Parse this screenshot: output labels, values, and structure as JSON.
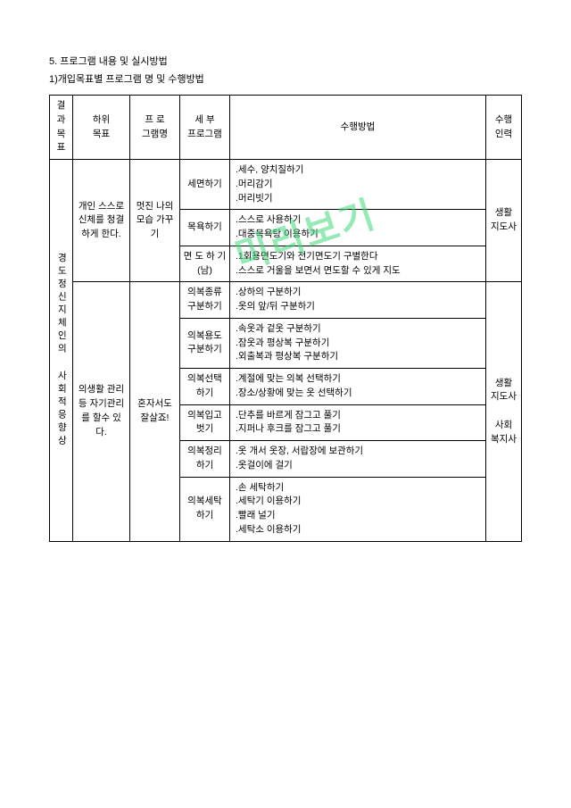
{
  "watermark": "미리보기",
  "section_title": "5. 프로그램 내용 및 실시방법",
  "subsection": "1)개입목표별 프로그램 명 및 수행방법",
  "headers": {
    "col1": "결과\n목표",
    "col2": "하위\n목표",
    "col3": "프 로\n그램명",
    "col4": "세 부\n프로그램",
    "col5": "수행방법",
    "col6": "수행\n인력"
  },
  "col1_text": "경도정신지체인의 사회적응향상",
  "group1": {
    "sub_goal": "개인 스스로\n신체를 청결\n하게 한다.",
    "program": "멋진 나의\n모습 가꾸기",
    "staff": "생활\n지도사",
    "rows": [
      {
        "detail": "세면하기",
        "method": ".세수, 양치질하기\n.머리감기\n.머리빗기"
      },
      {
        "detail": "목욕하기",
        "method": ".스스로 사용하기\n.대중목욕탕 이용하기"
      },
      {
        "detail": "면 도 하 기\n(남)",
        "method": ".1회용면도기와 전기면도기 구별한다\n.스스로 거울을 보면서 면도할 수 있게  지도"
      }
    ]
  },
  "group2": {
    "sub_goal": "의생활 관리\n등 자기관리\n를 할수 있\n다.",
    "program": "혼자서도\n잘살죠!",
    "staff": "생활\n지도사\n\n사회\n복지사",
    "rows": [
      {
        "detail": "의복종류\n구분하기",
        "method": ".상하의 구분하기\n.옷의 앞/뒤 구분하기"
      },
      {
        "detail": "의복용도\n구분하기",
        "method": ".속옷과 겉옷 구분하기\n.잠옷과 평상복 구분하기\n.외출복과 평상복 구분하기"
      },
      {
        "detail": "의복선택\n하기",
        "method": ".계절에 맞는 의복 선택하기\n.장소/상황에 맞는 옷 선택하기"
      },
      {
        "detail": "의복입고\n벗기",
        "method": ".단추를 바르게 잠그고 풀기\n.지퍼나 후크를 잠그고 풀기"
      },
      {
        "detail": "의복정리\n하기",
        "method": ".옷 개서 옷장, 서랍장에 보관하기\n.옷걸이에 걸기"
      },
      {
        "detail": "의복세탁\n하기",
        "method": ".손 세탁하기\n.세탁기 이용하기\n.빨래 널기\n.세탁소 이용하기"
      }
    ]
  }
}
